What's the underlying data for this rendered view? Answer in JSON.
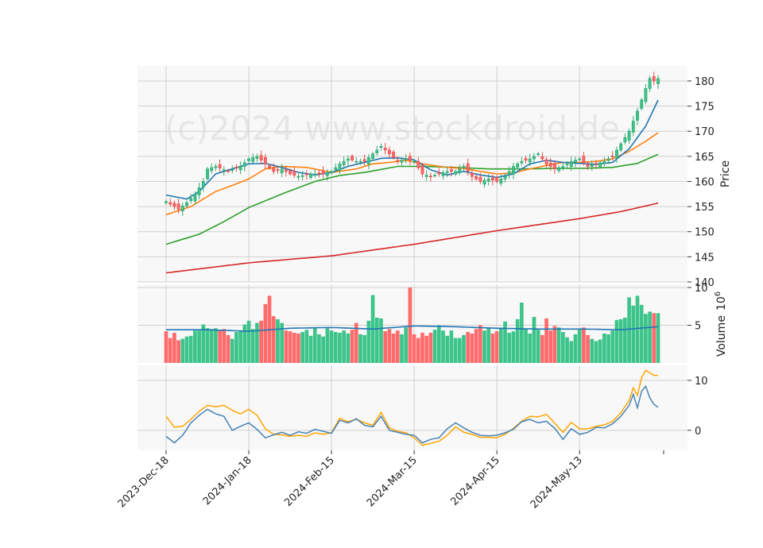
{
  "watermark": "(c)2024 www.stockdroid.de",
  "colors": {
    "up": "#26a269",
    "up_fill": "#3cc48a",
    "down": "#e63e3e",
    "down_fill": "#ff6b6b",
    "ma_short": "#1f77b4",
    "ma_mid": "#ff7f0e",
    "ma_long": "#2ca02c",
    "ma_200": "#d62728",
    "vol_ma": "#1f77b4",
    "osc_a": "#4682b4",
    "osc_b": "#ffa500",
    "panel_bg": "#f8f8f8",
    "grid": "#d0d0d0"
  },
  "axes": {
    "price_label": "Price",
    "volume_label": "Volume",
    "volume_exponent": "10",
    "volume_exponent_power": "6",
    "price_ticks": [
      "140",
      "145",
      "150",
      "155",
      "160",
      "165",
      "170",
      "175",
      "180"
    ],
    "volume_ticks": [
      "5",
      "10"
    ],
    "osc_ticks": [
      "0",
      "10"
    ],
    "date_ticks": [
      {
        "idx": 0,
        "label": "2023-Dec-18"
      },
      {
        "idx": 20,
        "label": "2024-Jan-18"
      },
      {
        "idx": 40,
        "label": "2024-Feb-15"
      },
      {
        "idx": 60,
        "label": "2024-Mar-15"
      },
      {
        "idx": 80,
        "label": "2024-Apr-15"
      },
      {
        "idx": 100,
        "label": "2024-May-13"
      }
    ]
  },
  "chart_data": {
    "type": "candlestick",
    "n_bars": 120,
    "ylim_price": [
      140,
      183
    ],
    "ylim_volume_millions": [
      0,
      10
    ],
    "ylim_oscillator": [
      -4,
      13
    ],
    "price": {
      "anchors_close": [
        [
          0,
          156.0
        ],
        [
          2,
          155.0
        ],
        [
          3,
          154.5
        ],
        [
          5,
          155.8
        ],
        [
          7,
          157.5
        ],
        [
          9,
          160.0
        ],
        [
          10,
          162.5
        ],
        [
          12,
          163.0
        ],
        [
          15,
          162.0
        ],
        [
          18,
          163.0
        ],
        [
          20,
          164.5
        ],
        [
          22,
          165.0
        ],
        [
          24,
          163.5
        ],
        [
          26,
          162.0
        ],
        [
          28,
          162.5
        ],
        [
          30,
          161.5
        ],
        [
          32,
          161.0
        ],
        [
          35,
          161.5
        ],
        [
          38,
          161.5
        ],
        [
          40,
          162.0
        ],
        [
          42,
          163.5
        ],
        [
          44,
          164.5
        ],
        [
          46,
          164.0
        ],
        [
          48,
          164.0
        ],
        [
          50,
          165.5
        ],
        [
          52,
          167.0
        ],
        [
          54,
          165.5
        ],
        [
          56,
          164.0
        ],
        [
          58,
          164.5
        ],
        [
          60,
          164.0
        ],
        [
          62,
          161.5
        ],
        [
          64,
          161.0
        ],
        [
          66,
          161.5
        ],
        [
          68,
          162.0
        ],
        [
          70,
          162.0
        ],
        [
          72,
          163.0
        ],
        [
          74,
          161.0
        ],
        [
          76,
          160.0
        ],
        [
          78,
          160.5
        ],
        [
          80,
          160.0
        ],
        [
          82,
          161.0
        ],
        [
          84,
          163.0
        ],
        [
          86,
          164.0
        ],
        [
          88,
          164.5
        ],
        [
          90,
          165.5
        ],
        [
          92,
          163.5
        ],
        [
          94,
          162.5
        ],
        [
          96,
          163.0
        ],
        [
          98,
          164.0
        ],
        [
          100,
          164.5
        ],
        [
          102,
          163.0
        ],
        [
          104,
          163.5
        ],
        [
          106,
          164.0
        ],
        [
          108,
          165.0
        ],
        [
          110,
          167.5
        ],
        [
          112,
          170.0
        ],
        [
          114,
          174.0
        ],
        [
          116,
          178.5
        ],
        [
          117,
          180.5
        ],
        [
          118,
          180.0
        ],
        [
          119,
          180.5
        ]
      ],
      "ma_short": [
        [
          0,
          157.3
        ],
        [
          5,
          156.5
        ],
        [
          8,
          158.0
        ],
        [
          12,
          161.5
        ],
        [
          16,
          162.5
        ],
        [
          20,
          163.5
        ],
        [
          24,
          163.6
        ],
        [
          28,
          162.8
        ],
        [
          32,
          161.8
        ],
        [
          36,
          161.3
        ],
        [
          40,
          161.8
        ],
        [
          44,
          163.0
        ],
        [
          48,
          163.8
        ],
        [
          52,
          164.6
        ],
        [
          56,
          164.7
        ],
        [
          60,
          164.3
        ],
        [
          64,
          162.3
        ],
        [
          68,
          161.3
        ],
        [
          72,
          162.0
        ],
        [
          76,
          161.3
        ],
        [
          80,
          160.8
        ],
        [
          84,
          161.5
        ],
        [
          88,
          163.5
        ],
        [
          92,
          164.2
        ],
        [
          96,
          163.8
        ],
        [
          100,
          163.6
        ],
        [
          104,
          163.4
        ],
        [
          108,
          163.8
        ],
        [
          112,
          166.5
        ],
        [
          116,
          171.0
        ],
        [
          119,
          176.2
        ]
      ],
      "ma_mid": [
        [
          0,
          153.4
        ],
        [
          6,
          155.0
        ],
        [
          12,
          158.0
        ],
        [
          16,
          159.2
        ],
        [
          20,
          160.5
        ],
        [
          24,
          162.5
        ],
        [
          28,
          163.0
        ],
        [
          34,
          162.8
        ],
        [
          40,
          161.8
        ],
        [
          46,
          162.5
        ],
        [
          50,
          163.5
        ],
        [
          54,
          163.8
        ],
        [
          58,
          164.2
        ],
        [
          62,
          163.5
        ],
        [
          68,
          162.8
        ],
        [
          72,
          162.6
        ],
        [
          76,
          162.0
        ],
        [
          80,
          161.5
        ],
        [
          84,
          161.7
        ],
        [
          88,
          162.5
        ],
        [
          92,
          163.2
        ],
        [
          96,
          163.8
        ],
        [
          100,
          163.8
        ],
        [
          104,
          164.0
        ],
        [
          108,
          164.5
        ],
        [
          112,
          166.0
        ],
        [
          116,
          168.0
        ],
        [
          119,
          169.7
        ]
      ],
      "ma_long": [
        [
          0,
          147.5
        ],
        [
          8,
          149.5
        ],
        [
          14,
          152.0
        ],
        [
          20,
          154.8
        ],
        [
          28,
          157.5
        ],
        [
          36,
          160.0
        ],
        [
          42,
          161.2
        ],
        [
          48,
          161.8
        ],
        [
          56,
          163.0
        ],
        [
          62,
          163.0
        ],
        [
          70,
          162.8
        ],
        [
          78,
          162.5
        ],
        [
          86,
          162.5
        ],
        [
          94,
          162.6
        ],
        [
          100,
          162.6
        ],
        [
          108,
          162.8
        ],
        [
          114,
          163.6
        ],
        [
          119,
          165.4
        ]
      ],
      "ma_200": [
        [
          0,
          141.8
        ],
        [
          20,
          143.8
        ],
        [
          40,
          145.2
        ],
        [
          60,
          147.5
        ],
        [
          80,
          150.2
        ],
        [
          100,
          152.6
        ],
        [
          110,
          154.0
        ],
        [
          119,
          155.7
        ]
      ]
    },
    "volume": {
      "values_millions": [
        4.2,
        3.3,
        4.0,
        3.0,
        3.2,
        3.5,
        3.6,
        4.3,
        4.3,
        5.1,
        4.6,
        4.5,
        4.6,
        4.4,
        4.5,
        3.7,
        3.2,
        4.1,
        4.3,
        5.1,
        5.6,
        4.5,
        5.3,
        5.6,
        7.8,
        8.9,
        6.2,
        5.8,
        5.3,
        4.3,
        4.2,
        4.0,
        3.9,
        4.1,
        4.4,
        3.6,
        4.7,
        3.8,
        3.5,
        4.6,
        4.3,
        4.1,
        4.0,
        4.3,
        3.9,
        4.4,
        5.3,
        3.8,
        3.7,
        5.6,
        9.0,
        6.0,
        5.9,
        4.2,
        4.5,
        3.9,
        4.3,
        3.8,
        4.7,
        10.0,
        3.8,
        3.3,
        4.0,
        3.6,
        4.0,
        4.4,
        5.0,
        4.3,
        3.6,
        4.3,
        3.3,
        3.3,
        3.7,
        4.1,
        3.9,
        4.5,
        5.0,
        4.3,
        4.6,
        3.9,
        4.2,
        4.7,
        5.5,
        4.0,
        4.2,
        5.8,
        8.0,
        4.5,
        3.9,
        6.1,
        4.4,
        3.7,
        5.9,
        4.3,
        4.9,
        4.7,
        4.1,
        3.4,
        2.9,
        3.8,
        4.4,
        4.7,
        3.7,
        3.2,
        2.9,
        3.1,
        3.9,
        3.8,
        4.3,
        5.7,
        5.8,
        6.0,
        8.7,
        7.6,
        8.9,
        7.7,
        6.5,
        6.8,
        6.6,
        6.6
      ],
      "ma": [
        [
          0,
          4.4
        ],
        [
          10,
          4.4
        ],
        [
          20,
          4.2
        ],
        [
          30,
          4.6
        ],
        [
          40,
          4.7
        ],
        [
          50,
          4.5
        ],
        [
          60,
          4.9
        ],
        [
          70,
          4.8
        ],
        [
          80,
          4.6
        ],
        [
          90,
          4.5
        ],
        [
          100,
          4.5
        ],
        [
          110,
          4.4
        ],
        [
          119,
          4.8
        ]
      ]
    },
    "oscillator": {
      "line_a": [
        [
          0,
          -1.2
        ],
        [
          2,
          -2.5
        ],
        [
          4,
          -1.0
        ],
        [
          6,
          1.5
        ],
        [
          8,
          3.0
        ],
        [
          10,
          4.2
        ],
        [
          12,
          3.3
        ],
        [
          14,
          2.8
        ],
        [
          16,
          0.0
        ],
        [
          18,
          0.8
        ],
        [
          20,
          1.5
        ],
        [
          22,
          0.2
        ],
        [
          24,
          -1.5
        ],
        [
          26,
          -0.9
        ],
        [
          28,
          -0.4
        ],
        [
          30,
          -1.0
        ],
        [
          32,
          -0.3
        ],
        [
          34,
          -0.6
        ],
        [
          36,
          0.2
        ],
        [
          38,
          -0.2
        ],
        [
          40,
          -0.6
        ],
        [
          42,
          2.0
        ],
        [
          44,
          1.5
        ],
        [
          46,
          2.3
        ],
        [
          48,
          1.0
        ],
        [
          50,
          0.7
        ],
        [
          52,
          2.8
        ],
        [
          54,
          0.0
        ],
        [
          56,
          -0.4
        ],
        [
          58,
          -0.8
        ],
        [
          60,
          -1.0
        ],
        [
          62,
          -2.5
        ],
        [
          64,
          -1.8
        ],
        [
          66,
          -1.5
        ],
        [
          68,
          0.3
        ],
        [
          70,
          1.5
        ],
        [
          72,
          0.5
        ],
        [
          74,
          -0.4
        ],
        [
          76,
          -1.0
        ],
        [
          78,
          -1.1
        ],
        [
          80,
          -1.0
        ],
        [
          82,
          -0.5
        ],
        [
          84,
          0.2
        ],
        [
          86,
          1.7
        ],
        [
          88,
          2.2
        ],
        [
          90,
          1.5
        ],
        [
          92,
          1.8
        ],
        [
          94,
          0.4
        ],
        [
          96,
          -1.8
        ],
        [
          98,
          0.3
        ],
        [
          100,
          -0.8
        ],
        [
          102,
          -0.4
        ],
        [
          104,
          0.6
        ],
        [
          106,
          0.5
        ],
        [
          108,
          1.3
        ],
        [
          110,
          2.8
        ],
        [
          112,
          5.0
        ],
        [
          113,
          7.2
        ],
        [
          114,
          4.5
        ],
        [
          115,
          7.8
        ],
        [
          116,
          8.8
        ],
        [
          117,
          6.5
        ],
        [
          118,
          5.2
        ],
        [
          119,
          4.6
        ]
      ],
      "line_b": [
        [
          0,
          2.8
        ],
        [
          2,
          0.6
        ],
        [
          4,
          0.8
        ],
        [
          6,
          2.2
        ],
        [
          8,
          3.8
        ],
        [
          10,
          5.0
        ],
        [
          12,
          4.7
        ],
        [
          14,
          5.0
        ],
        [
          16,
          4.0
        ],
        [
          18,
          3.3
        ],
        [
          20,
          4.2
        ],
        [
          22,
          3.0
        ],
        [
          24,
          0.3
        ],
        [
          26,
          -0.8
        ],
        [
          28,
          -0.9
        ],
        [
          30,
          -1.2
        ],
        [
          32,
          -1.0
        ],
        [
          34,
          -1.2
        ],
        [
          36,
          -0.5
        ],
        [
          38,
          -0.8
        ],
        [
          40,
          -0.5
        ],
        [
          42,
          2.4
        ],
        [
          44,
          1.7
        ],
        [
          46,
          2.2
        ],
        [
          48,
          1.5
        ],
        [
          50,
          1.0
        ],
        [
          52,
          3.6
        ],
        [
          54,
          0.5
        ],
        [
          56,
          -0.2
        ],
        [
          58,
          -0.5
        ],
        [
          60,
          -1.5
        ],
        [
          62,
          -3.0
        ],
        [
          64,
          -2.6
        ],
        [
          66,
          -2.2
        ],
        [
          68,
          -1.0
        ],
        [
          70,
          0.7
        ],
        [
          72,
          -0.4
        ],
        [
          74,
          -0.8
        ],
        [
          76,
          -1.4
        ],
        [
          78,
          -1.4
        ],
        [
          80,
          -1.5
        ],
        [
          82,
          -0.8
        ],
        [
          84,
          0.4
        ],
        [
          86,
          1.8
        ],
        [
          88,
          2.8
        ],
        [
          90,
          2.7
        ],
        [
          92,
          3.2
        ],
        [
          94,
          1.4
        ],
        [
          96,
          -0.4
        ],
        [
          98,
          1.6
        ],
        [
          100,
          0.3
        ],
        [
          102,
          0.3
        ],
        [
          104,
          0.8
        ],
        [
          106,
          1.1
        ],
        [
          108,
          1.8
        ],
        [
          110,
          3.5
        ],
        [
          112,
          6.0
        ],
        [
          113,
          8.5
        ],
        [
          114,
          7.0
        ],
        [
          115,
          10.5
        ],
        [
          116,
          12.0
        ],
        [
          117,
          11.5
        ],
        [
          118,
          11.0
        ],
        [
          119,
          11.0
        ]
      ]
    }
  }
}
